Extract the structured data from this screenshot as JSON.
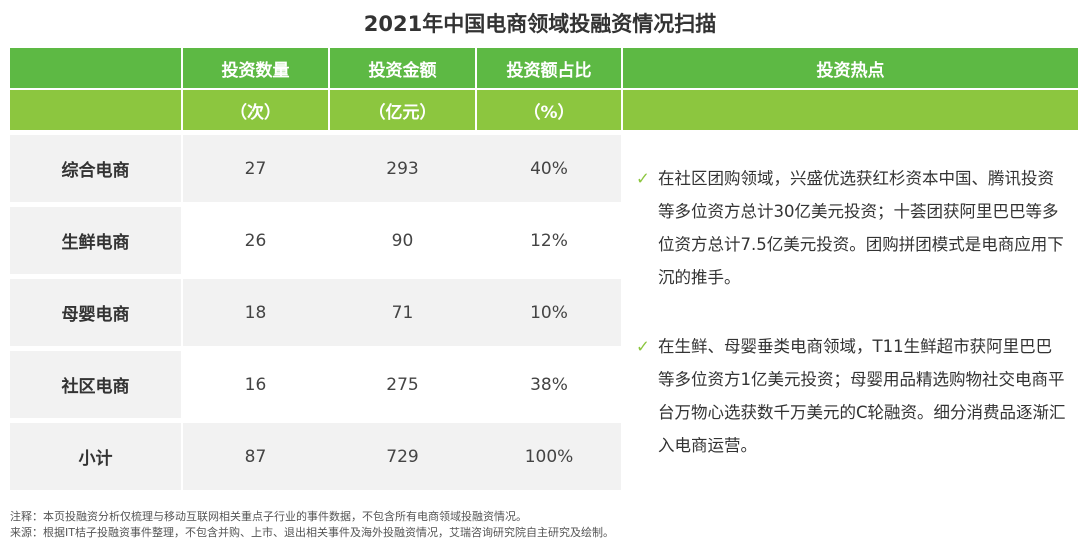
{
  "title": "2021年中国电商领域投融资情况扫描",
  "headers": [
    {
      "label": "投资数量",
      "unit": "（次）"
    },
    {
      "label": "投资金额",
      "unit": "（亿元）"
    },
    {
      "label": "投资额占比",
      "unit": "（%）"
    },
    {
      "label": "投资热点",
      "unit": ""
    }
  ],
  "rows": [
    {
      "label": "综合电商",
      "count": "27",
      "amount": "293",
      "share": "40%"
    },
    {
      "label": "生鲜电商",
      "count": "26",
      "amount": "90",
      "share": "12%"
    },
    {
      "label": "母婴电商",
      "count": "18",
      "amount": "71",
      "share": "10%"
    },
    {
      "label": "社区电商",
      "count": "16",
      "amount": "275",
      "share": "38%"
    },
    {
      "label": "小计",
      "count": "87",
      "amount": "729",
      "share": "100%"
    }
  ],
  "hotspots": [
    {
      "check": "✓",
      "text": "在社区团购领域，兴盛优选获红杉资本中国、腾讯投资等多位资方总计30亿美元投资；十荟团获阿里巴巴等多位资方总计7.5亿美元投资。团购拼团模式是电商应用下沉的推手。"
    },
    {
      "check": "✓",
      "text": "在生鲜、母婴垂类电商领域，T11生鲜超市获阿里巴巴等多位资方1亿美元投资；母婴用品精选购物社交电商平台万物心选获数千万美元的C轮融资。细分消费品逐渐汇入电商运营。"
    }
  ],
  "notes": {
    "note": "注释：本页投融资分析仅梳理与移动互联网相关重点子行业的事件数据，不包含所有电商领域投融资情况。",
    "source": "来源：根据IT桔子投融资事件整理，不包含并购、上市、退出相关事件及海外投融资情况，艾瑞咨询研究院自主研究及绘制。"
  },
  "colors": {
    "header_dark": "#5db944",
    "header_light": "#8cc63f",
    "row_band": "#f2f2f2",
    "check": "#8cc63f"
  }
}
